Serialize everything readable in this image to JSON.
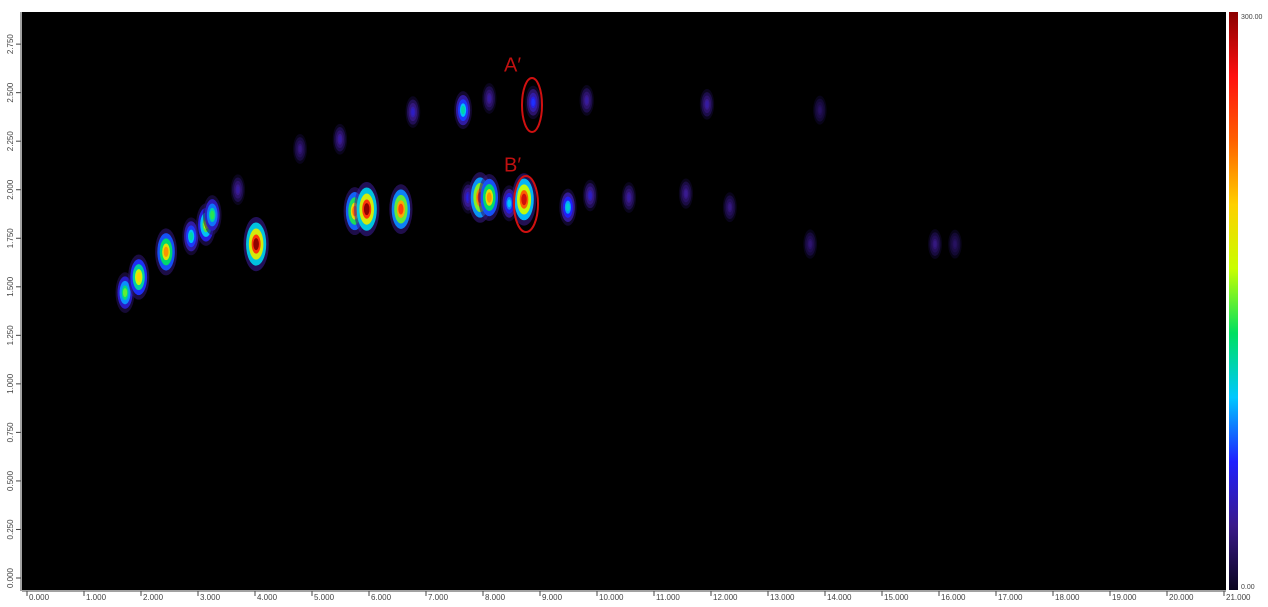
{
  "chart_data": {
    "type": "heatmap",
    "x": [
      1.72,
      1.96,
      2.44,
      2.88,
      3.14,
      3.25,
      3.7,
      4.02,
      4.79,
      5.49,
      5.75,
      5.96,
      6.56,
      6.77,
      7.65,
      7.74,
      7.95,
      8.11,
      8.11,
      8.46,
      8.72,
      8.88,
      9.49,
      9.82,
      9.88,
      10.56,
      11.56,
      11.93,
      12.33,
      13.74,
      13.91,
      15.93,
      16.28
    ],
    "y": [
      1.47,
      1.55,
      1.68,
      1.76,
      1.82,
      1.87,
      2.0,
      1.72,
      2.21,
      2.26,
      1.89,
      1.9,
      1.9,
      2.4,
      2.41,
      1.96,
      1.96,
      1.96,
      2.47,
      1.93,
      1.95,
      2.45,
      1.91,
      2.46,
      1.97,
      1.96,
      1.98,
      2.44,
      1.91,
      1.72,
      2.41,
      1.72,
      1.72
    ],
    "values": [
      150,
      200,
      220,
      120,
      170,
      140,
      40,
      300,
      30,
      40,
      230,
      300,
      250,
      50,
      120,
      60,
      260,
      220,
      40,
      100,
      280,
      70,
      110,
      40,
      50,
      40,
      35,
      40,
      30,
      25,
      20,
      30,
      20
    ],
    "xlim": [
      0,
      21
    ],
    "ylim": [
      0,
      2.9
    ],
    "xticks": [
      {
        "value": 0,
        "label": "0.000"
      },
      {
        "value": 1,
        "label": "1.000"
      },
      {
        "value": 2,
        "label": "2.000"
      },
      {
        "value": 3,
        "label": "3.000"
      },
      {
        "value": 4,
        "label": "4.000"
      },
      {
        "value": 5,
        "label": "5.000"
      },
      {
        "value": 6,
        "label": "6.000"
      },
      {
        "value": 7,
        "label": "7.000"
      },
      {
        "value": 8,
        "label": "8.000"
      },
      {
        "value": 9,
        "label": "9.000"
      },
      {
        "value": 10,
        "label": "10.000"
      },
      {
        "value": 11,
        "label": "11.000"
      },
      {
        "value": 12,
        "label": "12.000"
      },
      {
        "value": 13,
        "label": "13.000"
      },
      {
        "value": 14,
        "label": "14.000"
      },
      {
        "value": 15,
        "label": "15.000"
      },
      {
        "value": 16,
        "label": "16.000"
      },
      {
        "value": 17,
        "label": "17.000"
      },
      {
        "value": 18,
        "label": "18.000"
      },
      {
        "value": 19,
        "label": "19.000"
      },
      {
        "value": 20,
        "label": "20.000"
      },
      {
        "value": 21,
        "label": "21.000"
      }
    ],
    "yticks": [
      {
        "value": 0,
        "label": "0.000"
      },
      {
        "value": 0.25,
        "label": "0.250"
      },
      {
        "value": 0.5,
        "label": "0.500"
      },
      {
        "value": 0.75,
        "label": "0.750"
      },
      {
        "value": 1,
        "label": "1.000"
      },
      {
        "value": 1.25,
        "label": "1.250"
      },
      {
        "value": 1.5,
        "label": "1.500"
      },
      {
        "value": 1.75,
        "label": "1.750"
      },
      {
        "value": 2,
        "label": "2.000"
      },
      {
        "value": 2.25,
        "label": "2.250"
      },
      {
        "value": 2.5,
        "label": "2.500"
      },
      {
        "value": 2.75,
        "label": "2.750"
      }
    ],
    "colormap": [
      "#0a0520",
      "#3a1a8a",
      "#2020ff",
      "#00c8ff",
      "#00e060",
      "#c8ff00",
      "#ffd000",
      "#ff6000",
      "#ff1010",
      "#8a0000"
    ],
    "clim": [
      0,
      300
    ],
    "cticks": [
      {
        "value": 0,
        "label": "0.00"
      },
      {
        "value": 300,
        "label": "300.00"
      }
    ],
    "annotations": [
      "A′",
      "B′"
    ]
  }
}
